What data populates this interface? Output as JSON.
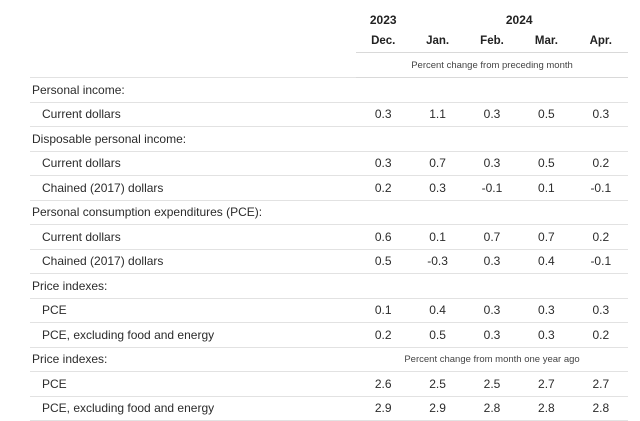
{
  "header": {
    "year_2023": "2023",
    "year_2024": "2024",
    "months": [
      "Dec.",
      "Jan.",
      "Feb.",
      "Mar.",
      "Apr."
    ],
    "unit_monthly": "Percent change from preceding month",
    "unit_yearly": "Percent change from month one year ago"
  },
  "rows": [
    {
      "type": "section",
      "label": "Personal income:",
      "values": [
        "",
        "",
        "",
        "",
        ""
      ]
    },
    {
      "type": "item",
      "label": "Current dollars",
      "values": [
        "0.3",
        "1.1",
        "0.3",
        "0.5",
        "0.3"
      ]
    },
    {
      "type": "section",
      "label": "Disposable personal income:",
      "values": [
        "",
        "",
        "",
        "",
        ""
      ]
    },
    {
      "type": "item",
      "label": "Current dollars",
      "values": [
        "0.3",
        "0.7",
        "0.3",
        "0.5",
        "0.2"
      ]
    },
    {
      "type": "item",
      "label": "Chained (2017) dollars",
      "values": [
        "0.2",
        "0.3",
        "-0.1",
        "0.1",
        "-0.1"
      ]
    },
    {
      "type": "section",
      "label": "Personal consumption expenditures (PCE):",
      "values": [
        "",
        "",
        "",
        "",
        ""
      ]
    },
    {
      "type": "item",
      "label": "Current dollars",
      "values": [
        "0.6",
        "0.1",
        "0.7",
        "0.7",
        "0.2"
      ]
    },
    {
      "type": "item",
      "label": "Chained (2017) dollars",
      "values": [
        "0.5",
        "-0.3",
        "0.3",
        "0.4",
        "-0.1"
      ]
    },
    {
      "type": "section",
      "label": "Price indexes:",
      "values": [
        "",
        "",
        "",
        "",
        ""
      ]
    },
    {
      "type": "item",
      "label": "PCE",
      "values": [
        "0.1",
        "0.4",
        "0.3",
        "0.3",
        "0.3"
      ]
    },
    {
      "type": "item",
      "label": "PCE, excluding food and energy",
      "values": [
        "0.2",
        "0.5",
        "0.3",
        "0.3",
        "0.2"
      ]
    },
    {
      "type": "section-unit",
      "label": "Price indexes:"
    },
    {
      "type": "item",
      "label": "PCE",
      "values": [
        "2.6",
        "2.5",
        "2.5",
        "2.7",
        "2.7"
      ]
    },
    {
      "type": "item",
      "label": "PCE, excluding food and energy",
      "values": [
        "2.9",
        "2.9",
        "2.8",
        "2.8",
        "2.8"
      ]
    }
  ]
}
